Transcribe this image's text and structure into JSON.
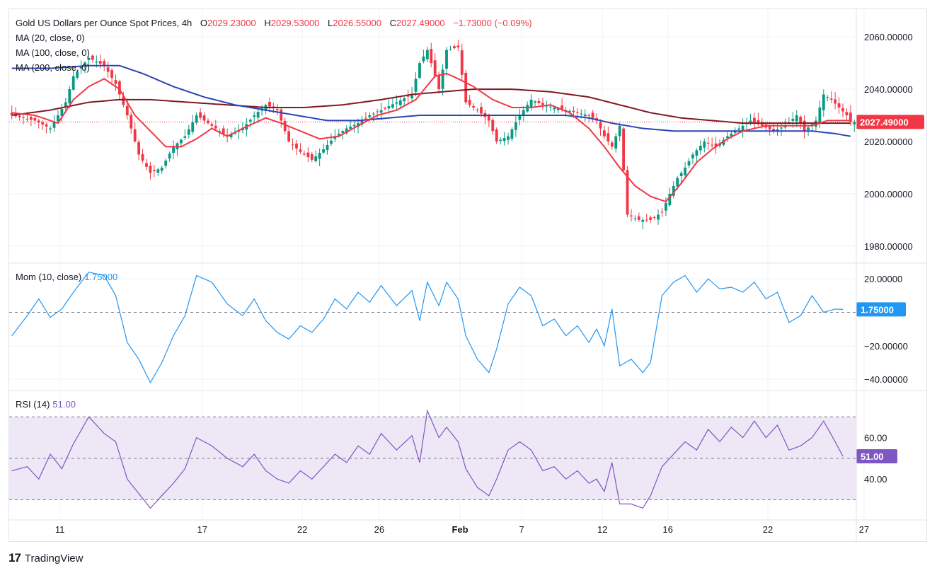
{
  "header": {
    "title": "Gold US Dollars per Ounce Spot Prices, 4h",
    "o_label": "O",
    "o": "2029.23000",
    "h_label": "H",
    "h": "2029.53000",
    "l_label": "L",
    "l": "2026.55000",
    "c_label": "C",
    "c": "2027.49000",
    "change": "−1.73000 (−0.09%)"
  },
  "legend": {
    "ma20": "MA (20, close, 0)",
    "ma100": "MA (100, close, 0)",
    "ma200": "MA (200, close, 0)",
    "mom": "Mom (10, close)",
    "mom_value": "1.75000",
    "rsi": "RSI (14)",
    "rsi_value": "51.00"
  },
  "price_axis": {
    "ticks": [
      "2060.00000",
      "2040.00000",
      "2020.00000",
      "2000.00000",
      "1980.00000"
    ],
    "last_label": "2027.49000"
  },
  "mom_axis": {
    "ticks": [
      "20.00000",
      "−20.00000",
      "−40.00000"
    ],
    "last_label": "1.75000"
  },
  "rsi_axis": {
    "ticks": [
      "60.00",
      "40.00"
    ],
    "last_label": "51.00"
  },
  "time_axis": {
    "ticks": [
      "11",
      "17",
      "22",
      "26",
      "Feb",
      "7",
      "12",
      "16",
      "22",
      "27"
    ]
  },
  "footer": {
    "logo": "17",
    "brand": "TradingView"
  },
  "colors": {
    "up": "#089981",
    "down": "#f23645",
    "ma20": "#f23645",
    "ma100": "#2a45b5",
    "ma200": "#801922",
    "mom": "#2196f3",
    "rsi": "#7e57c2",
    "rsi_band": "#ede7f6"
  },
  "chart_data": [
    {
      "type": "candlestick",
      "title": "Gold US Dollars per Ounce Spot Prices, 4h",
      "ylim": [
        1974,
        2066
      ],
      "x_ticks": [
        "11",
        "17",
        "22",
        "26",
        "Feb",
        "7",
        "12",
        "16",
        "22",
        "27"
      ],
      "close_path": [
        [
          0,
          2030
        ],
        [
          6,
          2028
        ],
        [
          10,
          2025
        ],
        [
          14,
          2035
        ],
        [
          16,
          2045
        ],
        [
          20,
          2052
        ],
        [
          24,
          2049
        ],
        [
          27,
          2042
        ],
        [
          30,
          2030
        ],
        [
          33,
          2015
        ],
        [
          36,
          2008
        ],
        [
          39,
          2010
        ],
        [
          42,
          2018
        ],
        [
          45,
          2022
        ],
        [
          48,
          2030
        ],
        [
          52,
          2026
        ],
        [
          56,
          2022
        ],
        [
          60,
          2025
        ],
        [
          63,
          2030
        ],
        [
          66,
          2034
        ],
        [
          69,
          2032
        ],
        [
          72,
          2020
        ],
        [
          75,
          2016
        ],
        [
          78,
          2013
        ],
        [
          81,
          2017
        ],
        [
          84,
          2022
        ],
        [
          87,
          2025
        ],
        [
          90,
          2027
        ],
        [
          93,
          2030
        ],
        [
          96,
          2032
        ],
        [
          100,
          2035
        ],
        [
          104,
          2038
        ],
        [
          106,
          2050
        ],
        [
          108,
          2055
        ],
        [
          111,
          2040
        ],
        [
          113,
          2055
        ],
        [
          116,
          2056
        ],
        [
          118,
          2035
        ],
        [
          121,
          2032
        ],
        [
          124,
          2028
        ],
        [
          126,
          2020
        ],
        [
          129,
          2022
        ],
        [
          132,
          2030
        ],
        [
          135,
          2036
        ],
        [
          138,
          2034
        ],
        [
          141,
          2033
        ],
        [
          144,
          2032
        ],
        [
          147,
          2031
        ],
        [
          150,
          2030
        ],
        [
          152,
          2028
        ],
        [
          154,
          2022
        ],
        [
          156,
          2018
        ],
        [
          158,
          2026
        ],
        [
          160,
          1992
        ],
        [
          163,
          1990
        ],
        [
          166,
          1990
        ],
        [
          169,
          1993
        ],
        [
          171,
          2000
        ],
        [
          173,
          2006
        ],
        [
          175,
          2010
        ],
        [
          177,
          2015
        ],
        [
          180,
          2020
        ],
        [
          183,
          2018
        ],
        [
          186,
          2022
        ],
        [
          189,
          2025
        ],
        [
          192,
          2028
        ],
        [
          195,
          2026
        ],
        [
          198,
          2024
        ],
        [
          201,
          2026
        ],
        [
          204,
          2030
        ],
        [
          206,
          2024
        ],
        [
          209,
          2028
        ],
        [
          211,
          2038
        ],
        [
          213,
          2036
        ],
        [
          215,
          2033
        ],
        [
          217,
          2030
        ],
        [
          218,
          2027.49
        ]
      ],
      "last_close": 2027.49,
      "ma20_path": [
        [
          0,
          2031
        ],
        [
          6,
          2030
        ],
        [
          12,
          2027
        ],
        [
          16,
          2036
        ],
        [
          20,
          2041
        ],
        [
          24,
          2044
        ],
        [
          28,
          2040
        ],
        [
          32,
          2030
        ],
        [
          36,
          2024
        ],
        [
          40,
          2018
        ],
        [
          44,
          2018
        ],
        [
          48,
          2021
        ],
        [
          52,
          2025
        ],
        [
          56,
          2022
        ],
        [
          60,
          2025
        ],
        [
          66,
          2029
        ],
        [
          70,
          2027
        ],
        [
          75,
          2024
        ],
        [
          80,
          2021
        ],
        [
          85,
          2022
        ],
        [
          90,
          2026
        ],
        [
          95,
          2030
        ],
        [
          100,
          2032
        ],
        [
          105,
          2036
        ],
        [
          110,
          2045
        ],
        [
          113,
          2046
        ],
        [
          116,
          2044
        ],
        [
          120,
          2041
        ],
        [
          125,
          2036
        ],
        [
          130,
          2033
        ],
        [
          135,
          2033
        ],
        [
          140,
          2034
        ],
        [
          145,
          2031
        ],
        [
          150,
          2025
        ],
        [
          154,
          2018
        ],
        [
          158,
          2010
        ],
        [
          162,
          2003
        ],
        [
          166,
          1999
        ],
        [
          170,
          1997
        ],
        [
          174,
          2004
        ],
        [
          178,
          2012
        ],
        [
          182,
          2017
        ],
        [
          186,
          2021
        ],
        [
          190,
          2024
        ],
        [
          196,
          2026
        ],
        [
          202,
          2026
        ],
        [
          208,
          2026
        ],
        [
          212,
          2028
        ],
        [
          218,
          2028
        ]
      ],
      "ma100_path": [
        [
          0,
          2048
        ],
        [
          10,
          2048
        ],
        [
          20,
          2049
        ],
        [
          28,
          2049
        ],
        [
          34,
          2046
        ],
        [
          42,
          2041
        ],
        [
          50,
          2037
        ],
        [
          58,
          2034
        ],
        [
          66,
          2032
        ],
        [
          74,
          2030
        ],
        [
          82,
          2028
        ],
        [
          90,
          2028
        ],
        [
          98,
          2029
        ],
        [
          106,
          2030
        ],
        [
          114,
          2030
        ],
        [
          120,
          2030
        ],
        [
          128,
          2030
        ],
        [
          136,
          2030
        ],
        [
          144,
          2030
        ],
        [
          150,
          2029
        ],
        [
          156,
          2027
        ],
        [
          164,
          2025
        ],
        [
          172,
          2024
        ],
        [
          180,
          2024
        ],
        [
          190,
          2024
        ],
        [
          200,
          2024
        ],
        [
          208,
          2024
        ],
        [
          214,
          2023
        ],
        [
          218,
          2022
        ]
      ],
      "ma200_path": [
        [
          0,
          2030
        ],
        [
          10,
          2032
        ],
        [
          20,
          2035
        ],
        [
          28,
          2036
        ],
        [
          36,
          2036
        ],
        [
          46,
          2035
        ],
        [
          56,
          2034
        ],
        [
          66,
          2033
        ],
        [
          76,
          2033
        ],
        [
          86,
          2034
        ],
        [
          96,
          2036
        ],
        [
          104,
          2038
        ],
        [
          112,
          2039
        ],
        [
          120,
          2040
        ],
        [
          130,
          2040
        ],
        [
          140,
          2039
        ],
        [
          150,
          2037
        ],
        [
          158,
          2034
        ],
        [
          166,
          2031
        ],
        [
          174,
          2029
        ],
        [
          182,
          2028
        ],
        [
          190,
          2027
        ],
        [
          200,
          2027
        ],
        [
          210,
          2027
        ],
        [
          218,
          2027
        ]
      ]
    },
    {
      "type": "line",
      "title": "Mom (10, close)",
      "ylim": [
        -45,
        26
      ],
      "zero_line": 0,
      "path": [
        [
          0,
          -14
        ],
        [
          4,
          -2
        ],
        [
          7,
          8
        ],
        [
          10,
          -3
        ],
        [
          13,
          2
        ],
        [
          16,
          12
        ],
        [
          20,
          24
        ],
        [
          24,
          22
        ],
        [
          27,
          10
        ],
        [
          30,
          -18
        ],
        [
          33,
          -28
        ],
        [
          36,
          -42
        ],
        [
          39,
          -30
        ],
        [
          42,
          -14
        ],
        [
          45,
          -2
        ],
        [
          48,
          22
        ],
        [
          52,
          18
        ],
        [
          56,
          5
        ],
        [
          60,
          -2
        ],
        [
          63,
          8
        ],
        [
          66,
          -5
        ],
        [
          69,
          -12
        ],
        [
          72,
          -16
        ],
        [
          75,
          -8
        ],
        [
          78,
          -12
        ],
        [
          81,
          -4
        ],
        [
          84,
          8
        ],
        [
          87,
          2
        ],
        [
          90,
          12
        ],
        [
          93,
          6
        ],
        [
          96,
          16
        ],
        [
          100,
          4
        ],
        [
          104,
          13
        ],
        [
          106,
          -5
        ],
        [
          108,
          18
        ],
        [
          111,
          4
        ],
        [
          113,
          18
        ],
        [
          116,
          8
        ],
        [
          118,
          -14
        ],
        [
          121,
          -28
        ],
        [
          124,
          -36
        ],
        [
          126,
          -22
        ],
        [
          129,
          5
        ],
        [
          132,
          15
        ],
        [
          135,
          10
        ],
        [
          138,
          -8
        ],
        [
          141,
          -4
        ],
        [
          144,
          -14
        ],
        [
          147,
          -8
        ],
        [
          150,
          -18
        ],
        [
          152,
          -10
        ],
        [
          154,
          -20
        ],
        [
          156,
          2
        ],
        [
          158,
          -32
        ],
        [
          161,
          -28
        ],
        [
          164,
          -36
        ],
        [
          166,
          -30
        ],
        [
          169,
          10
        ],
        [
          172,
          18
        ],
        [
          175,
          22
        ],
        [
          178,
          12
        ],
        [
          181,
          20
        ],
        [
          184,
          14
        ],
        [
          187,
          15
        ],
        [
          190,
          12
        ],
        [
          193,
          18
        ],
        [
          196,
          8
        ],
        [
          199,
          12
        ],
        [
          202,
          -6
        ],
        [
          205,
          -2
        ],
        [
          208,
          10
        ],
        [
          211,
          0
        ],
        [
          214,
          2
        ],
        [
          216,
          1.75
        ]
      ],
      "last": 1.75
    },
    {
      "type": "line",
      "title": "RSI (14)",
      "ylim": [
        22,
        80
      ],
      "band": [
        30,
        70
      ],
      "mid_line": 50,
      "path": [
        [
          0,
          44
        ],
        [
          4,
          46
        ],
        [
          7,
          40
        ],
        [
          10,
          52
        ],
        [
          13,
          45
        ],
        [
          16,
          57
        ],
        [
          20,
          70
        ],
        [
          24,
          62
        ],
        [
          27,
          58
        ],
        [
          30,
          40
        ],
        [
          33,
          33
        ],
        [
          36,
          26
        ],
        [
          39,
          32
        ],
        [
          42,
          38
        ],
        [
          45,
          45
        ],
        [
          48,
          60
        ],
        [
          52,
          56
        ],
        [
          56,
          50
        ],
        [
          60,
          46
        ],
        [
          63,
          52
        ],
        [
          66,
          44
        ],
        [
          69,
          40
        ],
        [
          72,
          38
        ],
        [
          75,
          44
        ],
        [
          78,
          40
        ],
        [
          81,
          46
        ],
        [
          84,
          52
        ],
        [
          87,
          48
        ],
        [
          90,
          56
        ],
        [
          93,
          52
        ],
        [
          96,
          62
        ],
        [
          100,
          54
        ],
        [
          104,
          61
        ],
        [
          106,
          48
        ],
        [
          108,
          73
        ],
        [
          111,
          60
        ],
        [
          113,
          65
        ],
        [
          116,
          58
        ],
        [
          118,
          45
        ],
        [
          121,
          36
        ],
        [
          124,
          32
        ],
        [
          126,
          40
        ],
        [
          129,
          54
        ],
        [
          132,
          58
        ],
        [
          135,
          54
        ],
        [
          138,
          44
        ],
        [
          141,
          46
        ],
        [
          144,
          40
        ],
        [
          147,
          44
        ],
        [
          150,
          38
        ],
        [
          152,
          40
        ],
        [
          154,
          34
        ],
        [
          156,
          48
        ],
        [
          158,
          28
        ],
        [
          161,
          28
        ],
        [
          164,
          26
        ],
        [
          166,
          32
        ],
        [
          169,
          46
        ],
        [
          172,
          52
        ],
        [
          175,
          58
        ],
        [
          178,
          54
        ],
        [
          181,
          64
        ],
        [
          184,
          58
        ],
        [
          187,
          65
        ],
        [
          190,
          60
        ],
        [
          193,
          68
        ],
        [
          196,
          60
        ],
        [
          199,
          66
        ],
        [
          202,
          54
        ],
        [
          205,
          56
        ],
        [
          208,
          60
        ],
        [
          211,
          68
        ],
        [
          214,
          58
        ],
        [
          216,
          51
        ]
      ],
      "last": 51.0
    }
  ]
}
